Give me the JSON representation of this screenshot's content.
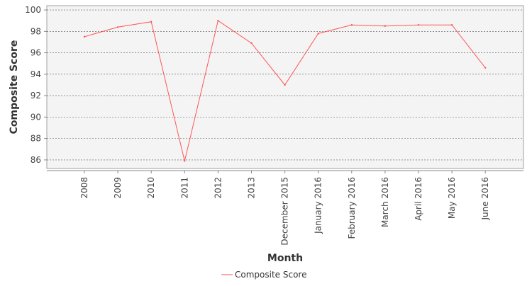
{
  "chart_data": {
    "type": "line",
    "xlabel": "Month",
    "ylabel": "Composite Score",
    "categories": [
      "2008",
      "2009",
      "2010",
      "2011",
      "2012",
      "2013",
      "December 2015",
      "January 2016",
      "February 2016",
      "March 2016",
      "April 2016",
      "May 2016",
      "June 2016"
    ],
    "series": [
      {
        "name": "Composite Score",
        "color": "#ff5555",
        "values": [
          97.5,
          98.4,
          98.9,
          85.9,
          99.0,
          96.9,
          93.0,
          97.8,
          98.6,
          98.5,
          98.6,
          98.6,
          94.6
        ]
      }
    ],
    "ylim": [
      85.2,
      100.4
    ],
    "yticks": [
      "86",
      "88",
      "90",
      "92",
      "94",
      "96",
      "98",
      "100"
    ],
    "grid": true,
    "legend_position": "bottom"
  }
}
